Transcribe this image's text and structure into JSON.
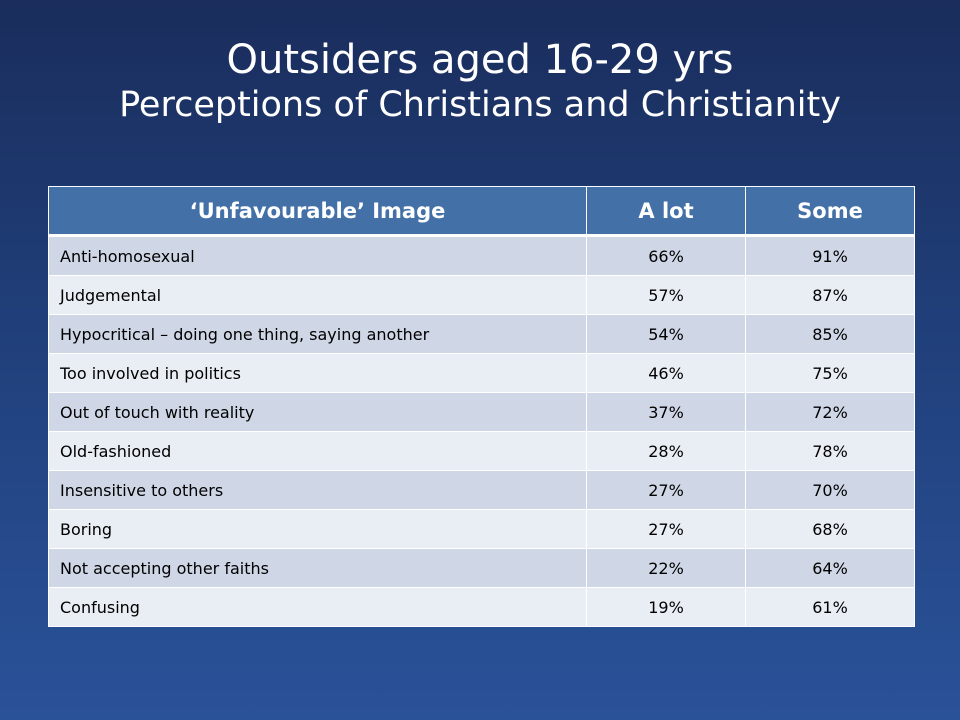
{
  "title": {
    "line1": "Outsiders aged 16-29 yrs",
    "line2": "Perceptions of Christians and Christianity"
  },
  "colors": {
    "header_bg": "#4470a8",
    "row_odd": "#cfd6e6",
    "row_even": "#e9edf4",
    "background_top": "#1a2d5c",
    "background_bottom": "#2a5299"
  },
  "chart_data": {
    "type": "table",
    "columns": [
      "‘Unfavourable’ Image",
      "A lot",
      "Some"
    ],
    "rows": [
      [
        "Anti-homosexual",
        "66%",
        "91%"
      ],
      [
        "Judgemental",
        "57%",
        "87%"
      ],
      [
        "Hypocritical – doing one thing, saying another",
        "54%",
        "85%"
      ],
      [
        "Too involved in politics",
        "46%",
        "75%"
      ],
      [
        "Out of touch with reality",
        "37%",
        "72%"
      ],
      [
        "Old-fashioned",
        "28%",
        "78%"
      ],
      [
        "Insensitive to others",
        "27%",
        "70%"
      ],
      [
        "Boring",
        "27%",
        "68%"
      ],
      [
        "Not accepting other faiths",
        "22%",
        "64%"
      ],
      [
        "Confusing",
        "19%",
        "61%"
      ]
    ]
  }
}
